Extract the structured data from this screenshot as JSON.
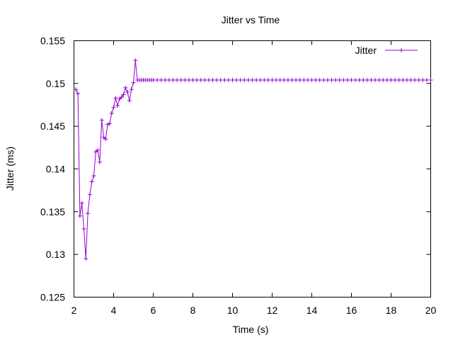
{
  "chart_data": {
    "type": "line",
    "title": "Jitter vs Time",
    "xlabel": "Time (s)",
    "ylabel": "Jitter (ms)",
    "xlim": [
      2,
      20
    ],
    "ylim": [
      0.125,
      0.155
    ],
    "xticks": [
      2,
      4,
      6,
      8,
      10,
      12,
      14,
      16,
      18,
      20
    ],
    "yticks": [
      0.125,
      0.13,
      0.135,
      0.14,
      0.145,
      0.15,
      0.155
    ],
    "ytick_labels": [
      "0.125",
      "0.13",
      "0.135",
      "0.14",
      "0.145",
      "0.15",
      "0.155"
    ],
    "grid": false,
    "legend_position": "top-right",
    "color": "#9400d3",
    "series": [
      {
        "name": "Jitter",
        "x": [
          2.1,
          2.2,
          2.3,
          2.4,
          2.5,
          2.6,
          2.7,
          2.8,
          2.9,
          3.0,
          3.1,
          3.2,
          3.3,
          3.4,
          3.5,
          3.6,
          3.7,
          3.8,
          3.9,
          4.0,
          4.1,
          4.2,
          4.3,
          4.4,
          4.5,
          4.6,
          4.7,
          4.8,
          4.9,
          5.0,
          5.1,
          5.2,
          5.3,
          5.4,
          5.5,
          5.6,
          5.7,
          5.8,
          5.9,
          6.0,
          6.2,
          6.4,
          6.6,
          6.8,
          7.0,
          7.2,
          7.4,
          7.6,
          7.8,
          8.0,
          8.2,
          8.4,
          8.6,
          8.8,
          9.0,
          9.2,
          9.4,
          9.6,
          9.8,
          10.0,
          10.2,
          10.4,
          10.6,
          10.8,
          11.0,
          11.2,
          11.4,
          11.6,
          11.8,
          12.0,
          12.2,
          12.4,
          12.6,
          12.8,
          13.0,
          13.2,
          13.4,
          13.6,
          13.8,
          14.0,
          14.2,
          14.4,
          14.6,
          14.8,
          15.0,
          15.2,
          15.4,
          15.6,
          15.8,
          16.0,
          16.2,
          16.4,
          16.6,
          16.8,
          17.0,
          17.2,
          17.4,
          17.6,
          17.8,
          18.0,
          18.2,
          18.4,
          18.6,
          18.8,
          19.0,
          19.2,
          19.4,
          19.6,
          19.8,
          20.0
        ],
        "values": [
          0.1493,
          0.1488,
          0.1345,
          0.136,
          0.133,
          0.1295,
          0.1348,
          0.137,
          0.1385,
          0.1392,
          0.142,
          0.1422,
          0.1408,
          0.1457,
          0.1437,
          0.1435,
          0.1452,
          0.1453,
          0.1465,
          0.1472,
          0.1483,
          0.1474,
          0.1482,
          0.1484,
          0.1487,
          0.1495,
          0.149,
          0.148,
          0.1493,
          0.1501,
          0.1527,
          0.1504,
          0.1504,
          0.1504,
          0.1504,
          0.1504,
          0.1504,
          0.1504,
          0.1504,
          0.1504,
          0.1504,
          0.1504,
          0.1504,
          0.1504,
          0.1504,
          0.1504,
          0.1504,
          0.1504,
          0.1504,
          0.1504,
          0.1504,
          0.1504,
          0.1504,
          0.1504,
          0.1504,
          0.1504,
          0.1504,
          0.1504,
          0.1504,
          0.1504,
          0.1504,
          0.1504,
          0.1504,
          0.1504,
          0.1504,
          0.1504,
          0.1504,
          0.1504,
          0.1504,
          0.1504,
          0.1504,
          0.1504,
          0.1504,
          0.1504,
          0.1504,
          0.1504,
          0.1504,
          0.1504,
          0.1504,
          0.1504,
          0.1504,
          0.1504,
          0.1504,
          0.1504,
          0.1504,
          0.1504,
          0.1504,
          0.1504,
          0.1504,
          0.1504,
          0.1504,
          0.1504,
          0.1504,
          0.1504,
          0.1504,
          0.1504,
          0.1504,
          0.1504,
          0.1504,
          0.1504,
          0.1504,
          0.1504,
          0.1504,
          0.1504,
          0.1504,
          0.1504,
          0.1504,
          0.1504,
          0.1504,
          0.1504
        ]
      }
    ]
  }
}
